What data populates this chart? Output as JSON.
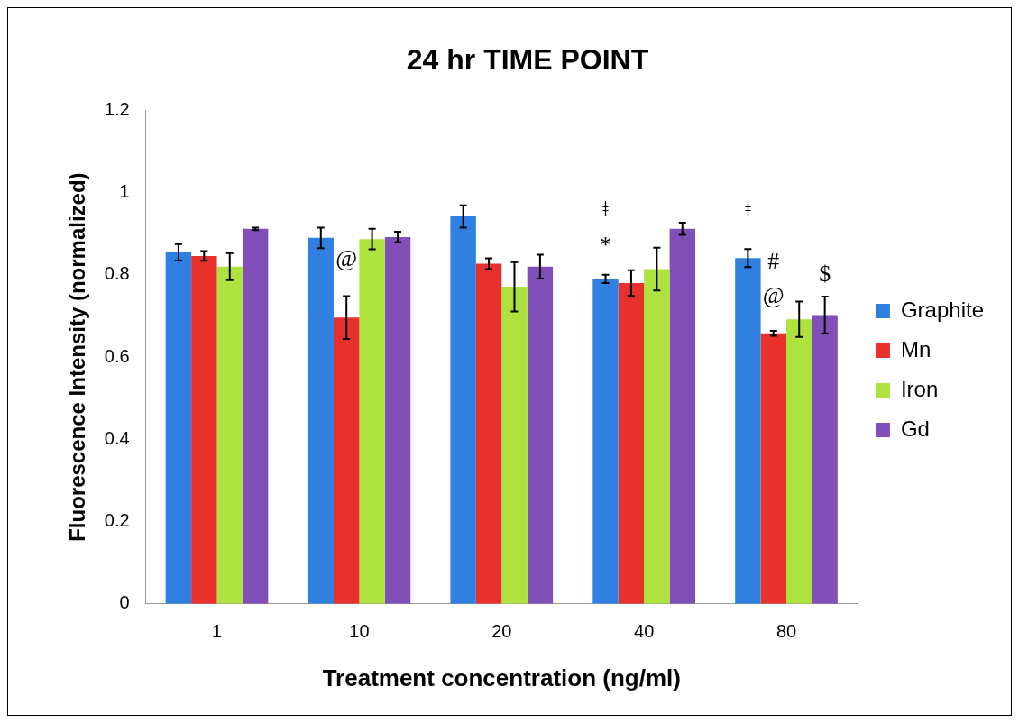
{
  "chart_data": {
    "type": "bar",
    "title": "24 hr TIME POINT",
    "xlabel": "Treatment concentration (ng/ml)",
    "ylabel": "Fluorescence Intensity (normalized)",
    "categories": [
      "1",
      "10",
      "20",
      "40",
      "80"
    ],
    "series": [
      {
        "name": "Graphite",
        "color": "#2f80e0",
        "values": [
          0.855,
          0.89,
          0.942,
          0.79,
          0.841
        ],
        "errors": [
          0.02,
          0.025,
          0.027,
          0.01,
          0.022
        ]
      },
      {
        "name": "Mn",
        "color": "#e8302c",
        "values": [
          0.846,
          0.696,
          0.827,
          0.78,
          0.658
        ],
        "errors": [
          0.012,
          0.052,
          0.013,
          0.031,
          0.006
        ]
      },
      {
        "name": "Iron",
        "color": "#aee23e",
        "values": [
          0.82,
          0.887,
          0.771,
          0.814,
          0.692
        ],
        "errors": [
          0.033,
          0.025,
          0.06,
          0.052,
          0.043
        ]
      },
      {
        "name": "Gd",
        "color": "#8050b8",
        "values": [
          0.912,
          0.892,
          0.82,
          0.912,
          0.702
        ],
        "errors": [
          0.003,
          0.013,
          0.029,
          0.015,
          0.045
        ]
      }
    ],
    "ylim": [
      0,
      1.2
    ],
    "yticks": [
      0,
      0.2,
      0.4,
      0.6,
      0.8,
      1,
      1.2
    ],
    "grid": false,
    "legend": "right",
    "annotations": [
      "@",
      "ǂ",
      "*",
      "ǂ",
      "#",
      "@",
      "$"
    ]
  }
}
